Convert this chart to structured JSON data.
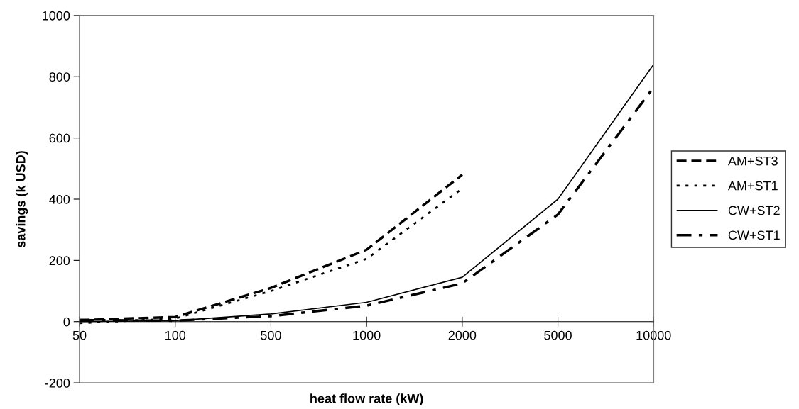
{
  "chart_data": {
    "type": "line",
    "xlabel": "heat flow rate (kW)",
    "ylabel": "savings (k USD)",
    "categories": [
      "50",
      "100",
      "500",
      "1000",
      "2000",
      "5000",
      "10000"
    ],
    "ylim": [
      -200,
      1000
    ],
    "yticks": [
      -200,
      0,
      200,
      400,
      600,
      800,
      1000
    ],
    "grid": false,
    "legend": "right",
    "marker": "none",
    "series": [
      {
        "name": "AM+ST3",
        "color": "#000000",
        "line_style": "dashed",
        "values": [
          5,
          15,
          110,
          235,
          480,
          null,
          null
        ]
      },
      {
        "name": "AM+ST1",
        "color": "#000000",
        "line_style": "dotted",
        "values": [
          -5,
          10,
          100,
          205,
          435,
          null,
          null
        ]
      },
      {
        "name": "CW+ST2",
        "color": "#000000",
        "line_style": "solid",
        "values": [
          0,
          3,
          25,
          63,
          145,
          400,
          840
        ]
      },
      {
        "name": "CW+ST1",
        "color": "#000000",
        "line_style": "dashdot",
        "values": [
          5,
          3,
          18,
          52,
          125,
          350,
          765
        ]
      }
    ]
  }
}
